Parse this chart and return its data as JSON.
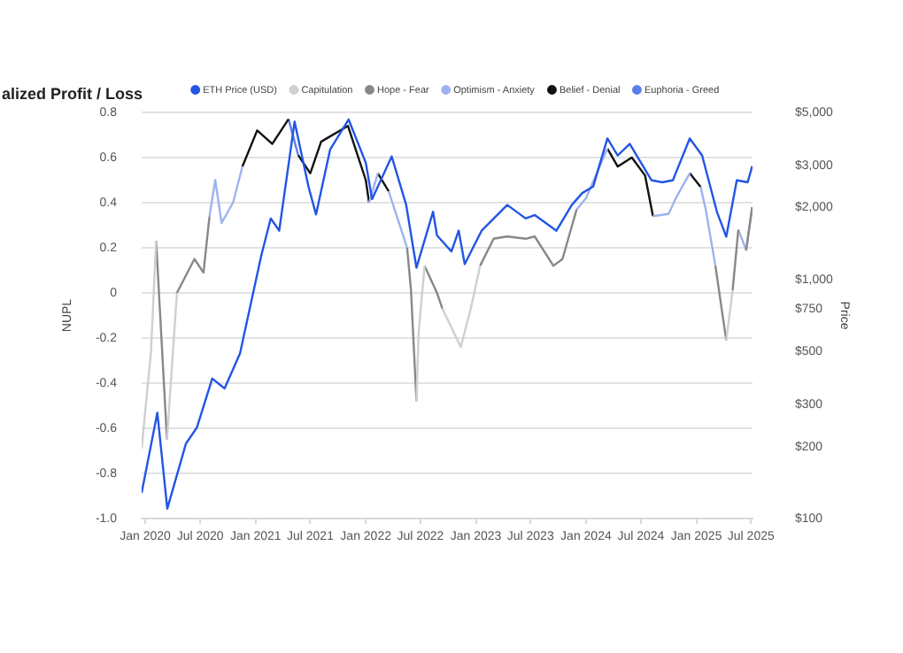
{
  "chart_data": {
    "type": "line",
    "title": "alized Profit / Loss",
    "ylabel": "NUPL",
    "y2label": "Price",
    "legend": "top",
    "grid": "y",
    "marker": "none",
    "xlim": [
      "2019-12-20",
      "2025-07-06"
    ],
    "xticks": [
      {
        "value": "2020-01-01",
        "label": "Jan 2020"
      },
      {
        "value": "2020-07-01",
        "label": "Jul 2020"
      },
      {
        "value": "2021-01-01",
        "label": "Jan 2021"
      },
      {
        "value": "2021-07-01",
        "label": "Jul 2021"
      },
      {
        "value": "2022-01-01",
        "label": "Jan 2022"
      },
      {
        "value": "2022-07-01",
        "label": "Jul 2022"
      },
      {
        "value": "2023-01-01",
        "label": "Jan 2023"
      },
      {
        "value": "2023-07-01",
        "label": "Jul 2023"
      },
      {
        "value": "2024-01-01",
        "label": "Jan 2024"
      },
      {
        "value": "2024-07-01",
        "label": "Jul 2024"
      },
      {
        "value": "2025-01-01",
        "label": "Jan 2025"
      },
      {
        "value": "2025-07-01",
        "label": "Jul 2025"
      }
    ],
    "ylim": [
      -1,
      0.8
    ],
    "yticks": [
      {
        "value": -1,
        "label": "-1.0"
      },
      -0.8,
      -0.6,
      -0.4,
      -0.2,
      0,
      0.2,
      0.4,
      0.6,
      0.8
    ],
    "log": "y2",
    "y2lim": [
      100,
      5000
    ],
    "y2ticks": [
      {
        "value": 100,
        "label": "$100"
      },
      {
        "value": 200,
        "label": "$200"
      },
      {
        "value": 300,
        "label": "$300"
      },
      {
        "value": 500,
        "label": "$500"
      },
      {
        "value": 750,
        "label": "$750"
      },
      {
        "value": 1000,
        "label": "$1,000"
      },
      {
        "value": 2000,
        "label": "$2,000"
      },
      {
        "value": 3000,
        "label": "$3,000"
      },
      {
        "value": 5000,
        "label": "$5,000"
      }
    ],
    "series": [
      {
        "name": "ETH Price (USD)",
        "color": "#2255e6",
        "axis": "y2",
        "x": [
          "2019-12-20",
          "2020-02-10",
          "2020-03-14",
          "2020-05-15",
          "2020-06-20",
          "2020-08-10",
          "2020-09-20",
          "2020-11-10",
          "2021-01-20",
          "2021-02-20",
          "2021-03-20",
          "2021-05-10",
          "2021-06-25",
          "2021-07-20",
          "2021-09-05",
          "2021-11-05",
          "2022-01-01",
          "2022-01-22",
          "2022-03-28",
          "2022-05-15",
          "2022-06-18",
          "2022-08-12",
          "2022-08-25",
          "2022-10-12",
          "2022-11-05",
          "2022-11-25",
          "2023-01-20",
          "2023-04-15",
          "2023-06-15",
          "2023-07-15",
          "2023-09-25",
          "2023-11-15",
          "2023-12-20",
          "2024-01-25",
          "2024-03-12",
          "2024-04-15",
          "2024-05-25",
          "2024-08-05",
          "2024-09-10",
          "2024-10-15",
          "2024-12-10",
          "2025-01-20",
          "2025-03-10",
          "2025-04-10",
          "2025-05-15",
          "2025-06-20",
          "2025-07-05"
        ],
        "values": [
          128,
          277,
          110,
          206,
          240,
          385,
          350,
          490,
          1265,
          1800,
          1600,
          4570,
          2450,
          1870,
          3500,
          4670,
          3080,
          2170,
          3270,
          2050,
          1120,
          1920,
          1530,
          1310,
          1600,
          1160,
          1600,
          2050,
          1800,
          1860,
          1600,
          2050,
          2300,
          2450,
          3890,
          3300,
          3690,
          2600,
          2550,
          2600,
          3890,
          3300,
          1920,
          1510,
          2600,
          2550,
          2980
        ]
      },
      {
        "name": "Capitulation",
        "color": "#cfcfcf",
        "x": [
          "2019-12-20",
          "2020-01-20",
          "2020-02-06",
          null,
          "2020-03-13",
          "2020-04-15",
          null,
          "2022-06-18",
          "2022-06-25",
          "2022-07-15",
          null,
          "2022-09-12",
          "2022-11-12",
          "2022-12-15",
          "2023-01-15",
          null,
          "2025-04-10",
          "2025-05-01"
        ],
        "values": [
          -0.69,
          -0.26,
          0.23,
          null,
          -0.65,
          0.0,
          null,
          -0.48,
          -0.18,
          0.12,
          null,
          -0.07,
          -0.24,
          -0.07,
          0.12,
          null,
          -0.21,
          0.01
        ]
      },
      {
        "name": "Hope - Fear",
        "color": "#888888",
        "x": [
          "2020-02-06",
          "2020-03-13",
          null,
          "2020-04-15",
          "2020-06-12",
          "2020-07-12",
          "2020-08-01",
          null,
          "2022-05-18",
          "2022-05-31",
          "2022-06-18",
          null,
          "2022-07-15",
          "2022-08-25",
          "2022-09-12",
          null,
          "2023-01-15",
          "2023-03-01",
          "2023-04-15",
          "2023-06-15",
          "2023-07-15",
          "2023-09-15",
          "2023-10-15",
          "2023-12-01",
          null,
          "2025-03-05",
          "2025-04-10",
          null,
          "2025-05-01",
          "2025-05-20",
          null,
          "2025-06-15",
          "2025-07-05"
        ],
        "values": [
          0.23,
          -0.65,
          null,
          0.0,
          0.15,
          0.09,
          0.34,
          null,
          0.2,
          0.01,
          -0.48,
          null,
          0.12,
          0.0,
          -0.07,
          null,
          0.12,
          0.24,
          0.25,
          0.24,
          0.25,
          0.12,
          0.15,
          0.37,
          null,
          0.12,
          -0.21,
          null,
          0.01,
          0.28,
          null,
          0.19,
          0.38
        ]
      },
      {
        "name": "Optimism - Anxiety",
        "color": "#9db3ee",
        "x": [
          "2020-08-01",
          "2020-08-20",
          "2020-09-10",
          "2020-10-18",
          "2020-11-18",
          null,
          "2022-01-12",
          "2022-02-10",
          null,
          "2022-03-18",
          "2022-05-18",
          null,
          "2023-12-01",
          "2024-01-01",
          "2024-03-12",
          null,
          "2024-08-10",
          "2024-10-01",
          "2024-10-25",
          "2024-12-10",
          null,
          "2025-01-15",
          "2025-02-01",
          "2025-03-05",
          null,
          "2025-05-20",
          "2025-06-15",
          "2025-07-05"
        ],
        "values": [
          0.34,
          0.5,
          0.31,
          0.4,
          0.56,
          null,
          0.4,
          0.53,
          null,
          0.45,
          0.2,
          null,
          0.37,
          0.42,
          0.64,
          null,
          0.34,
          0.35,
          0.42,
          0.53,
          null,
          0.47,
          0.37,
          0.12,
          null,
          0.28,
          0.19,
          0.38
        ]
      },
      {
        "name": "Belief - Denial",
        "color": "#111111",
        "x": [
          "2020-11-18",
          "2021-01-06",
          "2021-02-25",
          "2021-04-20",
          null,
          "2021-05-22",
          "2021-07-01",
          "2021-08-06",
          "2021-11-03",
          "2022-01-01",
          "2022-01-12",
          null,
          "2022-02-10",
          "2022-03-18",
          null,
          "2024-03-12",
          "2024-04-15",
          "2024-06-01",
          "2024-07-15",
          "2024-08-10",
          null,
          "2024-12-10",
          "2025-01-15"
        ],
        "values": [
          0.56,
          0.72,
          0.66,
          0.77,
          null,
          0.61,
          0.53,
          0.67,
          0.74,
          0.5,
          0.4,
          null,
          0.53,
          0.45,
          null,
          0.64,
          0.56,
          0.6,
          0.52,
          0.34,
          null,
          0.53,
          0.47
        ]
      },
      {
        "name": "Euphoria - Greed",
        "color": "#5b7fe8",
        "x": [
          "2021-04-20",
          "2021-05-22"
        ],
        "values": [
          0.77,
          0.61
        ]
      }
    ]
  }
}
